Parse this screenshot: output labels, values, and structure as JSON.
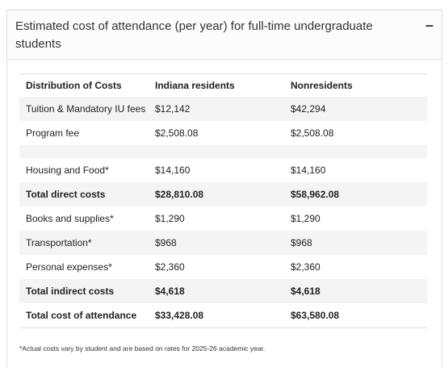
{
  "header": {
    "title": "Estimated cost of attendance (per year) for full-time undergraduate students",
    "toggle": "–"
  },
  "table": {
    "columns": [
      "Distribution of Costs",
      "Indiana residents",
      "Nonresidents"
    ],
    "groups": [
      [
        {
          "cells": [
            "Tuition & Mandatory IU fees",
            "$12,142",
            "$42,294"
          ]
        },
        {
          "cells": [
            "Program fee",
            "$2,508.08",
            "$2,508.08"
          ]
        }
      ],
      [
        {
          "cells": [
            "Housing and Food*",
            "$14,160",
            "$14,160"
          ]
        },
        {
          "cells": [
            "Total direct costs",
            "$28,810.08",
            "$58,962.08"
          ],
          "bold": true
        },
        {
          "cells": [
            "Books and supplies*",
            "$1,290",
            "$1,290"
          ]
        },
        {
          "cells": [
            "Transportation*",
            "$968",
            "$968"
          ]
        },
        {
          "cells": [
            "Personal expenses*",
            "$2,360",
            "$2,360"
          ]
        },
        {
          "cells": [
            "Total indirect costs",
            "$4,618",
            "$4,618"
          ],
          "bold": true
        },
        {
          "cells": [
            "Total cost of attendance",
            "$33,428.08",
            "$63,580.08"
          ],
          "bold": true
        }
      ]
    ]
  },
  "footnote": "*Actual costs vary by student and are based on rates for 2025-26 academic year."
}
